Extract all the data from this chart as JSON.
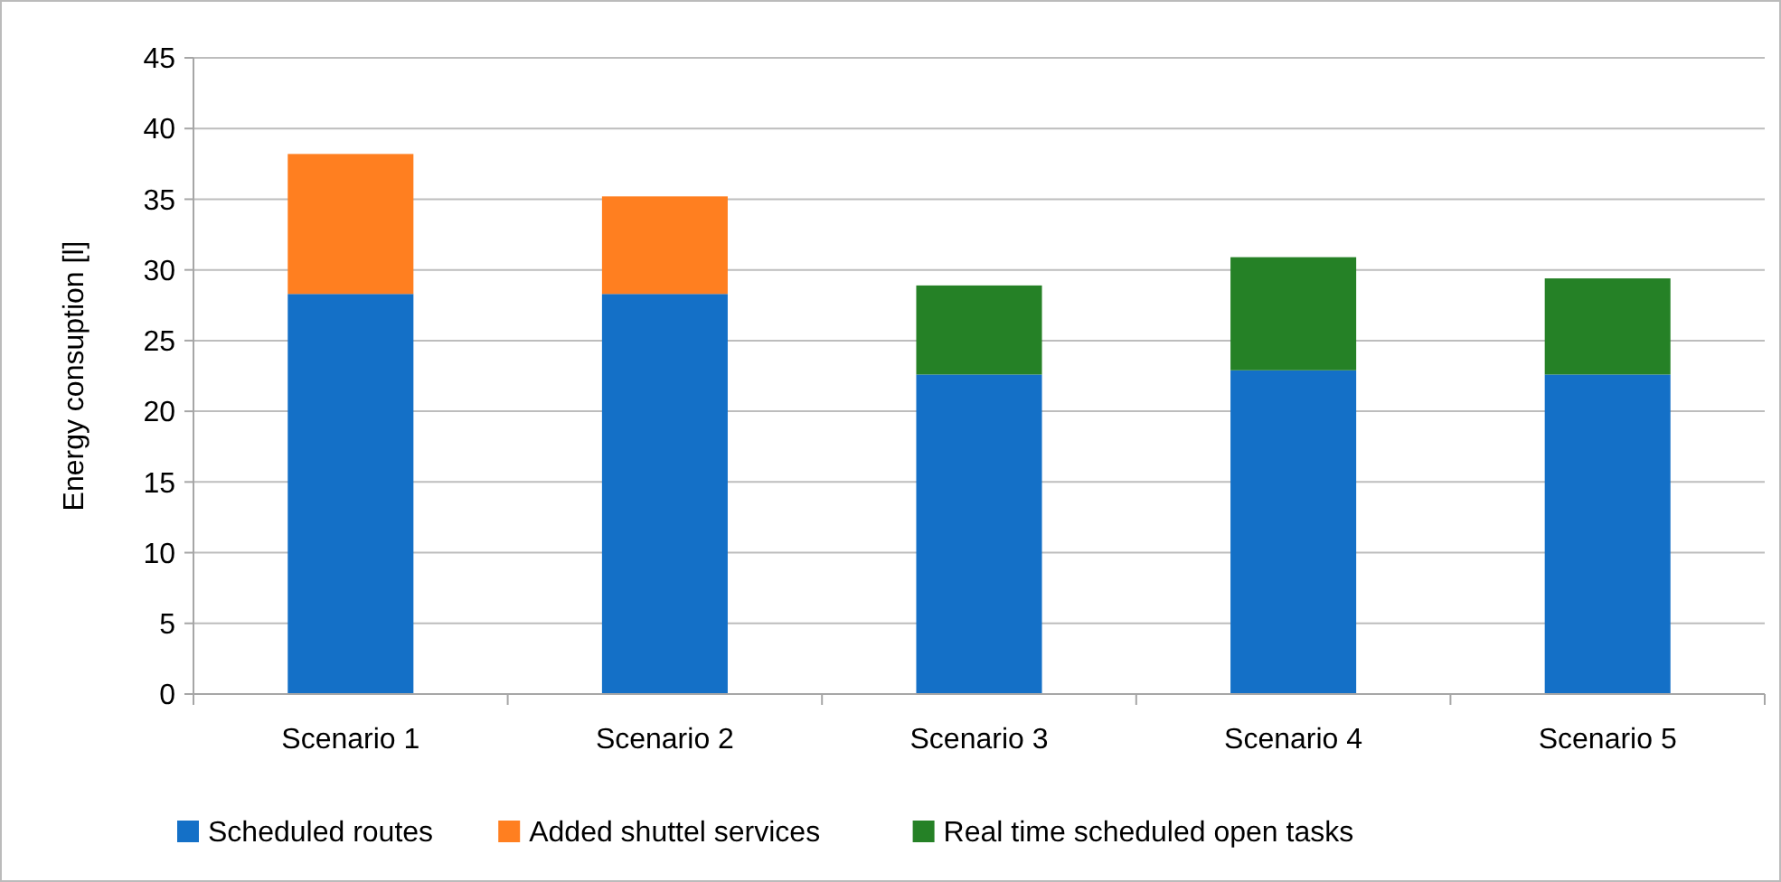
{
  "chart_data": {
    "type": "bar",
    "stacked": true,
    "ylabel": "Energy consuption [l]",
    "categories": [
      "Scenario 1",
      "Scenario 2",
      "Scenario 3",
      "Scenario 4",
      "Scenario 5"
    ],
    "series": [
      {
        "name": "Scheduled routes",
        "color": "#1470c7",
        "values": [
          28.3,
          28.3,
          22.6,
          22.9,
          22.6
        ]
      },
      {
        "name": "Added shuttel services",
        "color": "#ff7f20",
        "values": [
          9.9,
          6.9,
          null,
          null,
          null
        ]
      },
      {
        "name": "Real time scheduled open tasks",
        "color": "#258126",
        "values": [
          null,
          null,
          6.3,
          8.0,
          6.8
        ]
      }
    ],
    "ylim": [
      0,
      45
    ],
    "yticks": [
      0,
      5,
      10,
      15,
      20,
      25,
      30,
      35,
      40,
      45
    ],
    "grid": "y",
    "legend": "bottom"
  }
}
